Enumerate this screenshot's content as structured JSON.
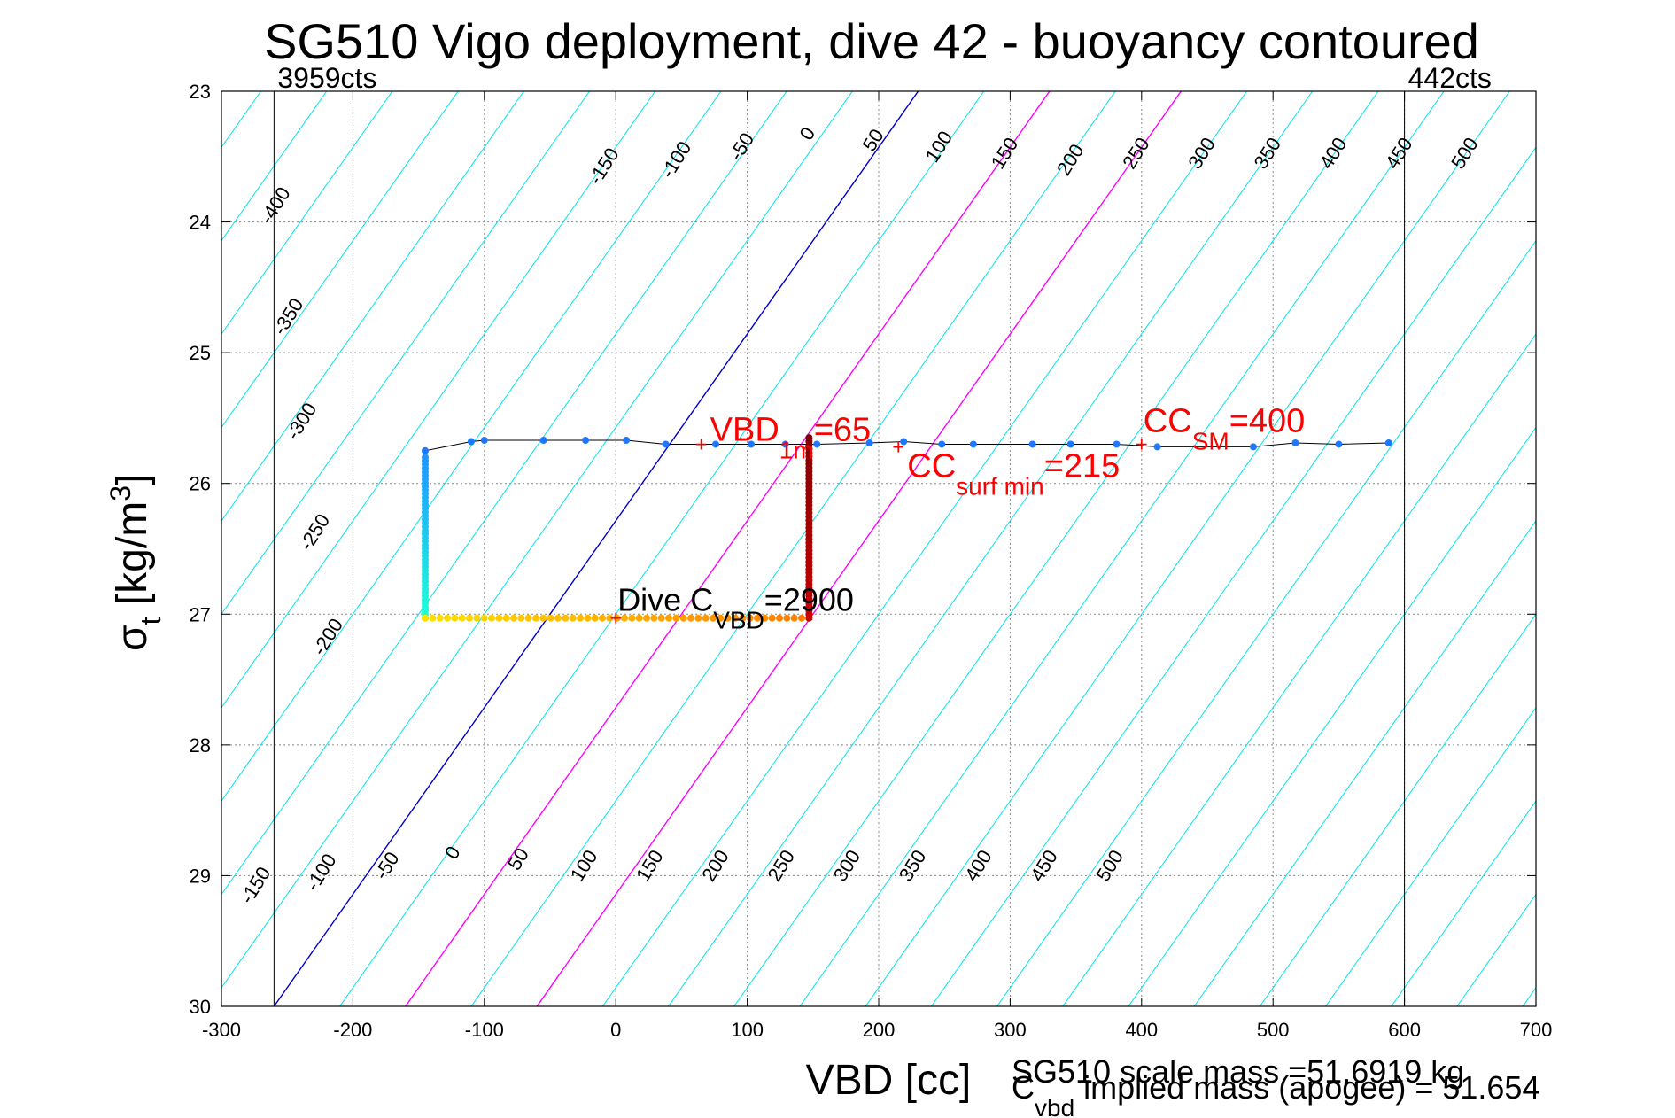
{
  "chart_data": {
    "type": "scatter",
    "title": "SG510 Vigo deployment, dive 42 - buoyancy contoured",
    "xlabel": "VBD [cc]",
    "ylabel": {
      "symbol": "σ",
      "sub": "t",
      "unit": "[kg/m",
      "sup": "3",
      "close": "]"
    },
    "xlim": [
      -300,
      700
    ],
    "ylim": [
      23,
      30
    ],
    "y_reversed": true,
    "grid": true,
    "x_ticks": [
      -300,
      -200,
      -100,
      0,
      100,
      200,
      300,
      400,
      500,
      600,
      700
    ],
    "x_tick_labels": [
      "-300",
      "-200",
      "-100",
      "0",
      "100",
      "200",
      "300",
      "400",
      "500",
      "600",
      "700"
    ],
    "y_ticks": [
      23,
      24,
      25,
      26,
      27,
      28,
      29,
      30
    ],
    "y_tick_labels": [
      "23",
      "24",
      "25",
      "26",
      "27",
      "28",
      "29",
      "30"
    ],
    "colors": {
      "contour": "#00e5e5",
      "zero_contour": "#0000cc",
      "range_contour": "#ff00ff",
      "annotation": "#ff0000",
      "axis": "#000000",
      "grid": "#888888",
      "profile_line": "#000000"
    },
    "limit_lines": [
      {
        "x": -260,
        "label": "3959cts"
      },
      {
        "x": 600,
        "label": "442cts"
      }
    ],
    "contours": {
      "upper_labels": [
        {
          "value": -400,
          "x": -255,
          "y": 23.9
        },
        {
          "value": -350,
          "x": -245,
          "y": 24.75
        },
        {
          "value": -300,
          "x": -235,
          "y": 25.55
        },
        {
          "value": -250,
          "x": -225,
          "y": 26.4
        },
        {
          "value": -200,
          "x": -215,
          "y": 27.2
        },
        {
          "value": -150,
          "x": -5,
          "y": 23.6
        },
        {
          "value": -100,
          "x": 50,
          "y": 23.55
        },
        {
          "value": -50,
          "x": 100,
          "y": 23.45
        },
        {
          "value": 0,
          "x": 150,
          "y": 23.35
        },
        {
          "value": 50,
          "x": 200,
          "y": 23.4
        },
        {
          "value": 100,
          "x": 250,
          "y": 23.45
        },
        {
          "value": 150,
          "x": 300,
          "y": 23.5
        },
        {
          "value": 200,
          "x": 350,
          "y": 23.55
        },
        {
          "value": 250,
          "x": 400,
          "y": 23.5
        },
        {
          "value": 300,
          "x": 450,
          "y": 23.5
        },
        {
          "value": 350,
          "x": 500,
          "y": 23.5
        },
        {
          "value": 400,
          "x": 550,
          "y": 23.5
        },
        {
          "value": 450,
          "x": 600,
          "y": 23.5
        },
        {
          "value": 500,
          "x": 650,
          "y": 23.5
        }
      ],
      "lower_labels": [
        {
          "value": -150,
          "x": -270,
          "y": 29.1
        },
        {
          "value": -100,
          "x": -220,
          "y": 29.0
        },
        {
          "value": -50,
          "x": -170,
          "y": 28.95
        },
        {
          "value": 0,
          "x": -120,
          "y": 28.85
        },
        {
          "value": 50,
          "x": -70,
          "y": 28.9
        },
        {
          "value": 100,
          "x": -20,
          "y": 28.95
        },
        {
          "value": 150,
          "x": 30,
          "y": 28.95
        },
        {
          "value": 200,
          "x": 80,
          "y": 28.95
        },
        {
          "value": 250,
          "x": 130,
          "y": 28.95
        },
        {
          "value": 300,
          "x": 180,
          "y": 28.95
        },
        {
          "value": 350,
          "x": 230,
          "y": 28.95
        },
        {
          "value": 400,
          "x": 280,
          "y": 28.95
        },
        {
          "value": 450,
          "x": 330,
          "y": 28.95
        },
        {
          "value": 500,
          "x": 380,
          "y": 28.95
        }
      ]
    },
    "profile": [
      {
        "x": -145,
        "y": 25.75
      },
      {
        "x": -110,
        "y": 25.68
      },
      {
        "x": -100,
        "y": 25.67
      },
      {
        "x": -55,
        "y": 25.67
      },
      {
        "x": -23,
        "y": 25.67
      },
      {
        "x": 8,
        "y": 25.67
      },
      {
        "x": 38,
        "y": 25.7
      },
      {
        "x": 76,
        "y": 25.7
      },
      {
        "x": 103,
        "y": 25.7
      },
      {
        "x": 129,
        "y": 25.7
      },
      {
        "x": 153,
        "y": 25.7
      },
      {
        "x": 193,
        "y": 25.69
      },
      {
        "x": 219,
        "y": 25.68
      },
      {
        "x": 248,
        "y": 25.7
      },
      {
        "x": 272,
        "y": 25.7
      },
      {
        "x": 317,
        "y": 25.7
      },
      {
        "x": 346,
        "y": 25.7
      },
      {
        "x": 381,
        "y": 25.7
      },
      {
        "x": 412,
        "y": 25.72
      },
      {
        "x": 485,
        "y": 25.72
      },
      {
        "x": 517,
        "y": 25.69
      },
      {
        "x": 550,
        "y": 25.7
      },
      {
        "x": 588,
        "y": 25.69
      }
    ],
    "profile_left_x": -145,
    "profile_bottom_y": 27.03,
    "profile_right_x": 147,
    "dive_series_range": {
      "y_from": 25.7,
      "y_to": 27.0
    },
    "annotations": {
      "vbd1m": {
        "main": "VBD",
        "sub": "1m",
        "tail": "=65",
        "x": 65,
        "y": 25.7
      },
      "cc_surf_min": {
        "main": "CC",
        "sub": "surf min",
        "tail": "=215",
        "x": 215,
        "y": 25.72
      },
      "cc_sm": {
        "main": "CC",
        "sub": "SM",
        "tail": "=400",
        "x": 400,
        "y": 25.7
      },
      "dive_cvbd": {
        "main": "Dive C",
        "sub": "VBD",
        "tail": "=2900",
        "x": 0,
        "y": 27.03
      }
    },
    "footer": {
      "scale_mass": "SG510 scale mass =51.6919 kg",
      "implied_main": "C",
      "implied_sub": "vbd",
      "implied_tail": " implied mass (apogee) = 51.654"
    }
  }
}
